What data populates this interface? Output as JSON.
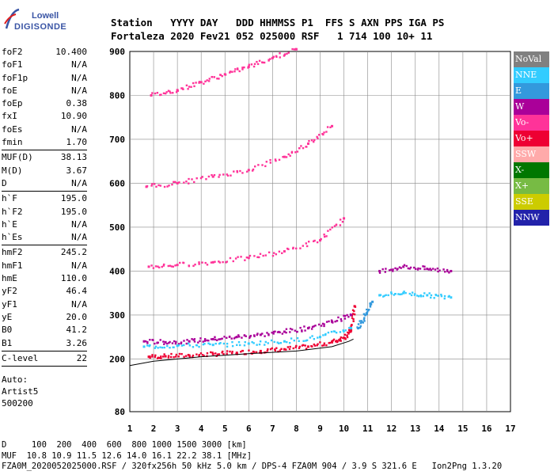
{
  "logo": {
    "line1": "Lowell",
    "line2": "DIGISONDE"
  },
  "header": {
    "line1": "Station   YYYY DAY   DDD HHMMSS P1  FFS S AXN PPS IGA PS",
    "line2": "Fortaleza 2020 Fev21 052 025000 RSF   1 714 100 10+ 11"
  },
  "params": {
    "group1": [
      {
        "label": "foF2",
        "value": "10.400"
      },
      {
        "label": "foF1",
        "value": "N/A"
      },
      {
        "label": "foF1p",
        "value": "N/A"
      },
      {
        "label": "foE",
        "value": "N/A"
      },
      {
        "label": "foEp",
        "value": "0.38"
      },
      {
        "label": "fxI",
        "value": "10.90"
      },
      {
        "label": "foEs",
        "value": "N/A"
      },
      {
        "label": "fmin",
        "value": "1.70"
      }
    ],
    "group2": [
      {
        "label": "MUF(D)",
        "value": "38.13"
      },
      {
        "label": "M(D)",
        "value": "3.67"
      },
      {
        "label": "D",
        "value": "N/A"
      }
    ],
    "group3": [
      {
        "label": "h`F",
        "value": "195.0"
      },
      {
        "label": "h`F2",
        "value": "195.0"
      },
      {
        "label": "h`E",
        "value": "N/A"
      },
      {
        "label": "h`Es",
        "value": "N/A"
      }
    ],
    "group4": [
      {
        "label": "hmF2",
        "value": "245.2"
      },
      {
        "label": "hmF1",
        "value": "N/A"
      },
      {
        "label": "hmE",
        "value": "110.0"
      },
      {
        "label": "yF2",
        "value": "46.4"
      },
      {
        "label": "yF1",
        "value": "N/A"
      },
      {
        "label": "yE",
        "value": "20.0"
      },
      {
        "label": "B0",
        "value": "41.2"
      },
      {
        "label": "B1",
        "value": "3.26"
      }
    ],
    "group5": [
      {
        "label": "C-level",
        "value": "22"
      }
    ],
    "auto_lines": [
      "Auto:",
      "Artist5",
      "500200"
    ]
  },
  "legend": [
    {
      "label": "NoVal",
      "color": "#808080"
    },
    {
      "label": "NNE",
      "color": "#33ccff"
    },
    {
      "label": "E",
      "color": "#3399dd"
    },
    {
      "label": "W",
      "color": "#aa0099"
    },
    {
      "label": "Vo-",
      "color": "#ff3399"
    },
    {
      "label": "Vo+",
      "color": "#ee0033"
    },
    {
      "label": "SSW",
      "color": "#ffaaaa"
    },
    {
      "label": "X-",
      "color": "#007700"
    },
    {
      "label": "X+",
      "color": "#77bb44"
    },
    {
      "label": "SSE",
      "color": "#cccc00"
    },
    {
      "label": "NNW",
      "color": "#2222aa"
    }
  ],
  "footer": {
    "line1": "D     100  200  400  600  800 1000 1500 3000 [km]",
    "line2": "MUF  10.8 10.9 11.5 12.6 14.0 16.1 22.2 38.1 [MHz]",
    "line3": "FZA0M_2020052025000.RSF / 320fx256h 50 kHz 5.0 km / DPS-4 FZA0M 904 / 3.9 S 321.6 E   Ion2Png 1.3.20"
  },
  "chart_data": {
    "type": "scatter",
    "xlim": [
      1,
      17
    ],
    "ylim": [
      80,
      900
    ],
    "x_ticks": [
      "1",
      "2",
      "3",
      "4",
      "5",
      "6",
      "7",
      "8",
      "9",
      "10",
      "11",
      "12",
      "13",
      "14",
      "15",
      "16",
      "17"
    ],
    "y_ticks": [
      "80",
      "200",
      "300",
      "400",
      "500",
      "600",
      "700",
      "800",
      "900"
    ],
    "grid": true,
    "legend_position": "right",
    "series": [
      {
        "name": "Vo+",
        "x": [
          1.8,
          2.5,
          3.5,
          4.5,
          5.5,
          6.5,
          7.5,
          8.5,
          9.5,
          10.0,
          10.3,
          10.45
        ],
        "y": [
          205,
          206,
          208,
          211,
          214,
          218,
          222,
          228,
          238,
          248,
          265,
          320
        ]
      },
      {
        "name": "W",
        "x": [
          1.6,
          2.5,
          3.5,
          4.5,
          5.5,
          6.5,
          7.5,
          8.5,
          9.5,
          10.3
        ],
        "y": [
          240,
          238,
          240,
          245,
          250,
          255,
          262,
          270,
          285,
          300
        ]
      },
      {
        "name": "NNE",
        "x": [
          1.6,
          3,
          4.5,
          6,
          7.5,
          9,
          10.3
        ],
        "y": [
          228,
          230,
          232,
          235,
          240,
          250,
          270
        ]
      },
      {
        "name": "Vo-",
        "x": [
          1.8,
          3,
          4.5,
          6,
          7.5,
          9,
          10.0
        ],
        "y": [
          410,
          414,
          420,
          430,
          445,
          470,
          520
        ]
      },
      {
        "name": "Vo-",
        "x": [
          1.7,
          3,
          4.5,
          6,
          7.5,
          8.5,
          9.5
        ],
        "y": [
          592,
          600,
          615,
          630,
          660,
          690,
          730
        ]
      },
      {
        "name": "Vo-",
        "x": [
          1.9,
          3,
          4,
          5,
          6,
          7,
          8
        ],
        "y": [
          800,
          812,
          830,
          848,
          865,
          885,
          905
        ]
      },
      {
        "name": "E",
        "x": [
          10.6,
          10.9,
          11.2
        ],
        "y": [
          270,
          300,
          330
        ]
      },
      {
        "name": "W",
        "x": [
          11.5,
          12.5,
          13.5,
          14.5
        ],
        "y": [
          400,
          410,
          405,
          400
        ]
      },
      {
        "name": "NNE",
        "x": [
          11.5,
          12.5,
          13.5,
          14.5
        ],
        "y": [
          345,
          350,
          345,
          340
        ]
      }
    ],
    "fitted_profile": {
      "x": [
        1.0,
        2.0,
        4.0,
        6.0,
        8.0,
        9.5,
        10.2,
        10.4
      ],
      "y": [
        185,
        195,
        205,
        212,
        218,
        228,
        240,
        245.2
      ]
    }
  }
}
